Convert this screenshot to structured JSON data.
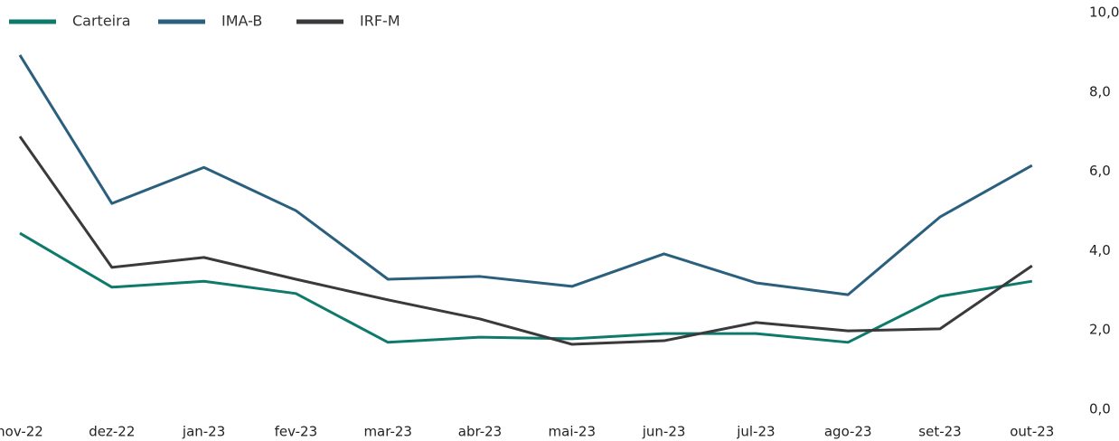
{
  "chart_data": {
    "type": "line",
    "categories": [
      "nov-22",
      "dez-22",
      "jan-23",
      "fev-23",
      "mar-23",
      "abr-23",
      "mai-23",
      "jun-23",
      "jul-23",
      "ago-23",
      "set-23",
      "out-23"
    ],
    "series": [
      {
        "name": "Carteira",
        "color": "#0e7a6b",
        "values": [
          4.44,
          3.08,
          3.23,
          2.92,
          1.69,
          1.82,
          1.78,
          1.91,
          1.91,
          1.69,
          2.85,
          3.23
        ]
      },
      {
        "name": "IMA-B",
        "color": "#2a5f7e",
        "values": [
          8.93,
          5.19,
          6.1,
          5.01,
          3.28,
          3.35,
          3.1,
          3.92,
          3.19,
          2.89,
          4.85,
          6.15
        ]
      },
      {
        "name": "IRF-M",
        "color": "#3a3a3c",
        "values": [
          6.88,
          3.58,
          3.83,
          3.28,
          2.76,
          2.28,
          1.64,
          1.73,
          2.19,
          1.98,
          2.03,
          3.62
        ]
      }
    ],
    "ylim": [
      0,
      10
    ],
    "yticks": [
      {
        "value": 0,
        "label": "0,0"
      },
      {
        "value": 2,
        "label": "2,0"
      },
      {
        "value": 4,
        "label": "4,0"
      },
      {
        "value": 6,
        "label": "6,0"
      },
      {
        "value": 8,
        "label": "8,0"
      },
      {
        "value": 10,
        "label": "10,0"
      }
    ],
    "grid": false,
    "legend": "top-left"
  }
}
